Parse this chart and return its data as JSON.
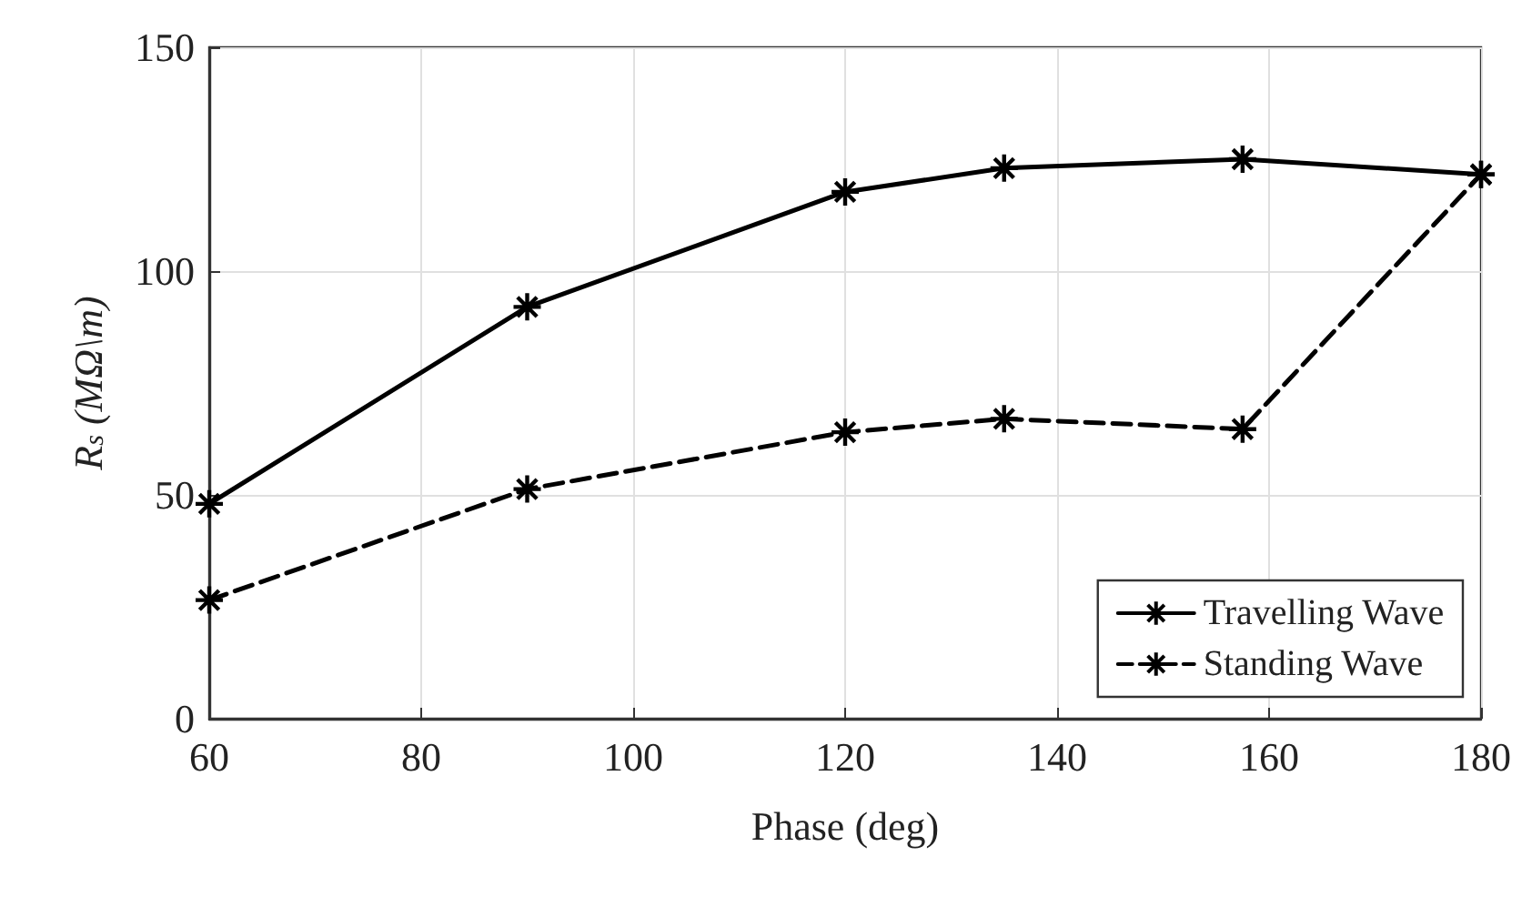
{
  "chart_data": {
    "type": "line",
    "xlabel": "Phase (deg)",
    "ylabel": "R$_{s}$ (MΩ\\m)",
    "x": [
      60,
      90,
      120,
      135,
      157.5,
      180
    ],
    "series": [
      {
        "name": "Travelling Wave",
        "color": "#000000",
        "line_style": "solid",
        "values": [
          48,
          92,
          117.7,
          123,
          125,
          121.6
        ]
      },
      {
        "name": "Standing Wave",
        "color": "#000000",
        "line_style": "dashed",
        "values": [
          26.5,
          51.3,
          64,
          67,
          64.7,
          121.6
        ]
      }
    ],
    "xlim": [
      60,
      180
    ],
    "xticks": [
      60,
      80,
      100,
      120,
      140,
      160,
      180
    ],
    "ylim": [
      0,
      150
    ],
    "yticks": [
      0,
      50,
      100,
      150
    ],
    "grid": true,
    "legend": "bottom right",
    "marker": "cross"
  }
}
